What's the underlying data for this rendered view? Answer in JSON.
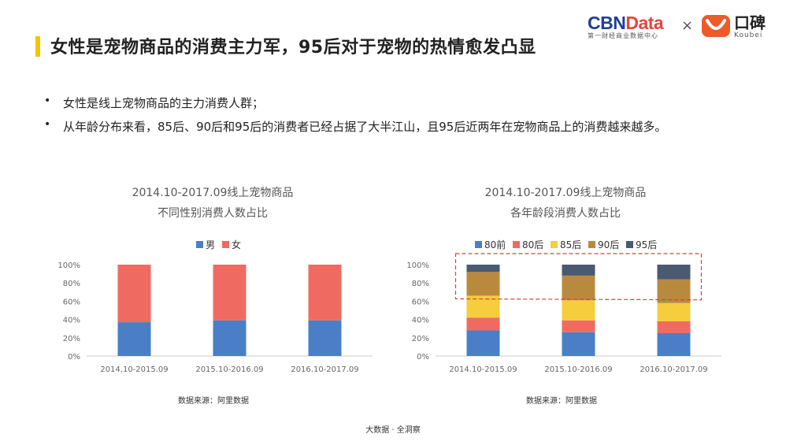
{
  "header": {
    "title": "女性是宠物商品的消费主力军，95后对于宠物的热情愈发凸显",
    "cbn_logo_main": "CBN",
    "cbn_logo_data": "Data",
    "cbn_logo_sub": "第一财经商业数据中心",
    "times_sign": "×",
    "koubei_cn": "口碑",
    "koubei_en": "Koubei",
    "accent_color": "#f5c400"
  },
  "bullets": [
    {
      "dot": "•",
      "text": "女性是线上宠物商品的主力消费人群；"
    },
    {
      "dot": "•",
      "text": "从年龄分布来看，85后、90后和95后的消费者已经占据了大半江山，且95后近两年在宠物商品上的消费越来越多。"
    }
  ],
  "chart_data": [
    {
      "type": "bar",
      "stacked": true,
      "title_lines": [
        "2014.10-2017.09线上宠物商品",
        "不同性别消费人数占比"
      ],
      "categories": [
        "2014.10-2015.09",
        "2015.10-2016.09",
        "2016.10-2017.09"
      ],
      "y_ticks": [
        "0%",
        "20%",
        "40%",
        "60%",
        "80%",
        "100%"
      ],
      "ylim": [
        0,
        100
      ],
      "legend_position": "top",
      "grid": false,
      "series": [
        {
          "name": "男",
          "color": "#4a7fc8",
          "values": [
            37,
            39,
            39
          ]
        },
        {
          "name": "女",
          "color": "#ef6b61",
          "values": [
            63,
            61,
            61
          ]
        }
      ]
    },
    {
      "type": "bar",
      "stacked": true,
      "title_lines": [
        "2014.10-2017.09线上宠物商品",
        "各年龄段消费人数占比"
      ],
      "categories": [
        "2014.10-2015.09",
        "2015.10-2016.09",
        "2016.10-2017.09"
      ],
      "y_ticks": [
        "0%",
        "20%",
        "40%",
        "60%",
        "80%",
        "100%"
      ],
      "ylim": [
        0,
        100
      ],
      "legend_position": "top",
      "grid": false,
      "highlight": "dashed red outline around the 90后 and 95后 segments",
      "series": [
        {
          "name": "80前",
          "color": "#4a7fc8",
          "values": [
            28,
            26,
            25
          ]
        },
        {
          "name": "80后",
          "color": "#ef6b61",
          "values": [
            14,
            13,
            13
          ]
        },
        {
          "name": "85后",
          "color": "#f5cd3d",
          "values": [
            24,
            22,
            20
          ]
        },
        {
          "name": "90后",
          "color": "#b98a3e",
          "values": [
            26,
            27,
            26
          ]
        },
        {
          "name": "95后",
          "color": "#4a5a70",
          "values": [
            8,
            12,
            16
          ]
        }
      ]
    }
  ],
  "sources": [
    "数据来源：阿里数据",
    "数据来源：阿里数据"
  ],
  "footer": "大数据 · 全洞察"
}
